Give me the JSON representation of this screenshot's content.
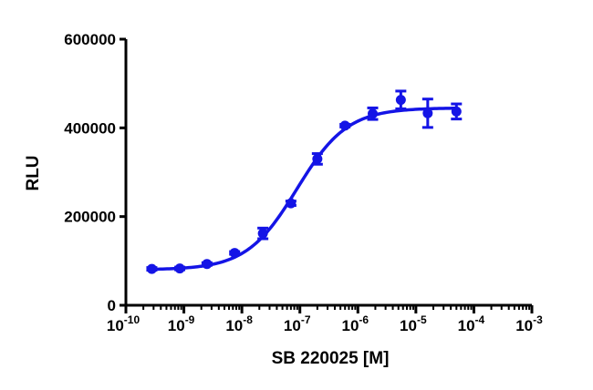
{
  "chart_data": {
    "type": "scatter",
    "title": "",
    "xlabel": "SB 220025 [M]",
    "ylabel": "RLU",
    "x_scale": "log10",
    "xlim": [
      1e-10,
      0.001
    ],
    "ylim": [
      0,
      600000
    ],
    "x_tick_base": "10",
    "x_tick_exponents": [
      "-10",
      "-9",
      "-8",
      "-7",
      "-6",
      "-5",
      "-4",
      "-3"
    ],
    "y_ticks": [
      0,
      200000,
      400000,
      600000
    ],
    "y_tick_labels": [
      "0",
      "200000",
      "400000",
      "600000"
    ],
    "grid": false,
    "legend": "none",
    "color": "#1414e6",
    "series": [
      {
        "name": "SB 220025",
        "points": [
          {
            "x": 2.8e-10,
            "y": 82000,
            "err": 3000
          },
          {
            "x": 8.5e-10,
            "y": 83000,
            "err": 3000
          },
          {
            "x": 2.5e-09,
            "y": 93000,
            "err": 3000
          },
          {
            "x": 7.5e-09,
            "y": 118000,
            "err": 3000
          },
          {
            "x": 2.3e-08,
            "y": 162000,
            "err": 12000
          },
          {
            "x": 7e-08,
            "y": 230000,
            "err": 5000
          },
          {
            "x": 2e-07,
            "y": 330000,
            "err": 12000
          },
          {
            "x": 6e-07,
            "y": 405000,
            "err": 3000
          },
          {
            "x": 1.8e-06,
            "y": 432000,
            "err": 13000
          },
          {
            "x": 5.5e-06,
            "y": 463000,
            "err": 20000
          },
          {
            "x": 1.6e-05,
            "y": 433000,
            "err": 32000
          },
          {
            "x": 5e-05,
            "y": 437000,
            "err": 17000
          }
        ]
      }
    ],
    "fit": {
      "model": "four-parameter logistic",
      "bottom": 80000,
      "top": 445000,
      "log_ec50": -7.05,
      "hill": 1.0,
      "x_range": [
        2.8e-10,
        5e-05
      ]
    }
  }
}
